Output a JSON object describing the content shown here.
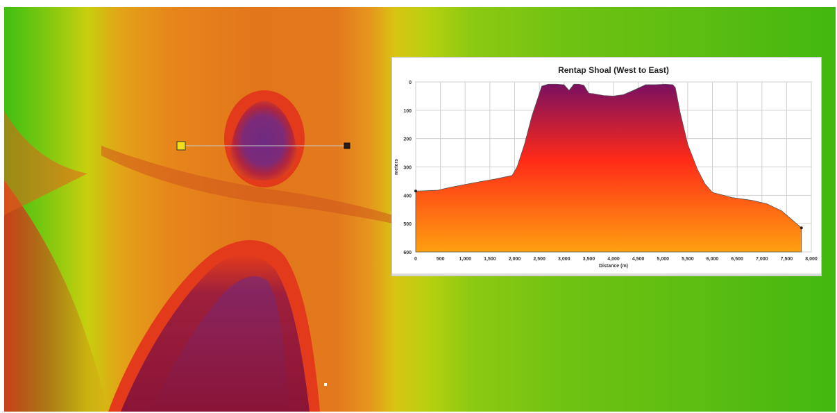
{
  "colors": {
    "profile_top": "#7a1060",
    "profile_mid": "#ff2a18",
    "profile_bottom": "#ffa010",
    "grid": "#d0d0d0",
    "transect_start": "#f1df1a",
    "transect_end": "#2a1a1a"
  },
  "map": {
    "transect_label": "profile-transect"
  },
  "chart_data": {
    "type": "area",
    "title": "Rentap Shoal (West to East)",
    "xlabel": "Distance (m)",
    "ylabel": "meters",
    "xlim": [
      0,
      8000
    ],
    "ylim": [
      600,
      0
    ],
    "y_inverted": true,
    "grid": true,
    "x_ticks": [
      0,
      500,
      1000,
      1500,
      2000,
      2500,
      3000,
      3500,
      4000,
      4500,
      5000,
      5500,
      6000,
      6500,
      7000,
      7500,
      8000
    ],
    "x_tick_labels": [
      "0",
      "500",
      "1,000",
      "1,500",
      "2,000",
      "2,500",
      "3,000",
      "3,500",
      "4,000",
      "4,500",
      "5,000",
      "5,500",
      "6,000",
      "6,500",
      "7,000",
      "7,500",
      "8,000"
    ],
    "y_ticks": [
      0,
      100,
      200,
      300,
      400,
      500,
      600
    ],
    "y_tick_labels": [
      "0",
      "100",
      "200",
      "300",
      "400",
      "500",
      "600"
    ],
    "series": [
      {
        "x": [
          0,
          200,
          450,
          700,
          1000,
          1300,
          1600,
          1950,
          2050,
          2200,
          2350,
          2550,
          2680,
          2850,
          3000,
          3100,
          3200,
          3300,
          3400,
          3500,
          3600,
          3800,
          4000,
          4200,
          4400,
          4650,
          4850,
          5050,
          5200,
          5250,
          5350,
          5500,
          5700,
          5850,
          6000,
          6400,
          6800,
          7100,
          7400,
          7800
        ],
        "y": [
          385,
          384,
          382,
          372,
          362,
          352,
          343,
          330,
          300,
          220,
          120,
          15,
          8,
          8,
          10,
          30,
          8,
          8,
          12,
          40,
          42,
          48,
          50,
          45,
          30,
          10,
          10,
          8,
          10,
          20,
          110,
          220,
          310,
          360,
          390,
          408,
          418,
          430,
          455,
          515
        ]
      }
    ]
  }
}
